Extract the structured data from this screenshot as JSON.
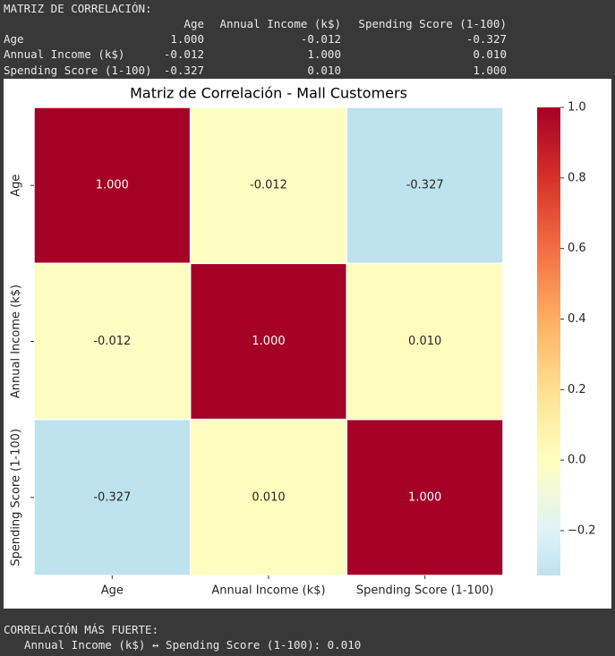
{
  "header": {
    "title": "MATRIZ DE CORRELACIÓN:"
  },
  "table": {
    "columns": [
      "Age",
      "Annual Income (k$)",
      "Spending Score (1-100)"
    ],
    "index": [
      "Age",
      "Annual Income (k$)",
      "Spending Score (1-100)"
    ],
    "rows": [
      [
        "1.000",
        "-0.012",
        "-0.327"
      ],
      [
        "-0.012",
        "1.000",
        "0.010"
      ],
      [
        "-0.327",
        "0.010",
        "1.000"
      ]
    ]
  },
  "chart_data": {
    "type": "heatmap",
    "title": "Matriz de Correlación - Mall Customers",
    "x_categories": [
      "Age",
      "Annual Income (k$)",
      "Spending Score (1-100)"
    ],
    "y_categories": [
      "Age",
      "Annual Income (k$)",
      "Spending Score (1-100)"
    ],
    "values": [
      [
        1.0,
        -0.012,
        -0.327
      ],
      [
        -0.012,
        1.0,
        0.01
      ],
      [
        -0.327,
        0.01,
        1.0
      ]
    ],
    "value_labels": [
      [
        "1.000",
        "-0.012",
        "-0.327"
      ],
      [
        "-0.012",
        "1.000",
        "0.010"
      ],
      [
        "-0.327",
        "0.010",
        "1.000"
      ]
    ],
    "center": 0,
    "colormap": [
      "#313695",
      "#4575b4",
      "#74add1",
      "#abd9e9",
      "#e0f3f8",
      "#ffffbf",
      "#fee090",
      "#fdae61",
      "#f46d43",
      "#d73027",
      "#a50026"
    ],
    "colorbar_lim": [
      -0.327,
      1.0
    ],
    "colorbar_ticks": [
      {
        "value": -0.2,
        "label": "−0.2"
      },
      {
        "value": 0,
        "label": "0.0"
      },
      0.2,
      0.4,
      0.6,
      0.8,
      {
        "value": 1,
        "label": "1.0"
      }
    ]
  },
  "footer": {
    "title": "CORRELACIÓN MÁS FUERTE:",
    "text": "Annual Income (k$) ↔ Spending Score (1-100): 0.010"
  }
}
